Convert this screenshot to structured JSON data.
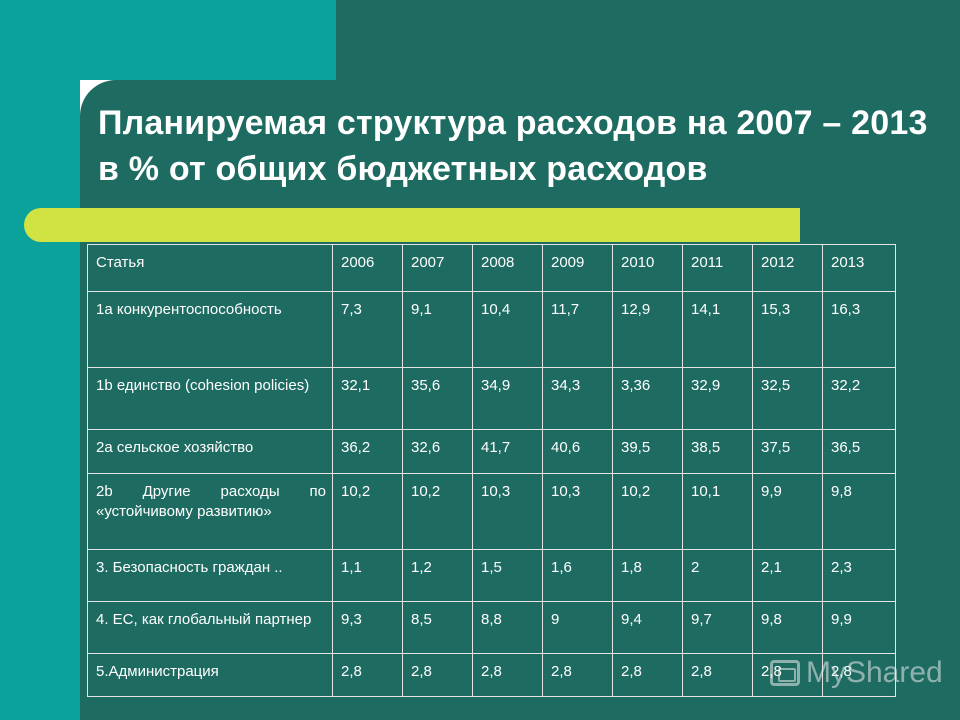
{
  "title": "Планируемая структура расходов на 2007 – 2013 в % от общих бюджетных расходов",
  "table": {
    "header": [
      "Статья",
      "2006",
      "2007",
      "2008",
      "2009",
      "2010",
      "2011",
      "2012",
      "2013"
    ],
    "rows": [
      {
        "label": "1а конкурентоспособность",
        "values": [
          "7,3",
          "9,1",
          "10,4",
          "11,7",
          "12,9",
          "14,1",
          "15,3",
          "16,3"
        ]
      },
      {
        "label": "1b единство (cohesion policies)",
        "values": [
          "32,1",
          "35,6",
          "34,9",
          "34,3",
          "3,36",
          "32,9",
          "32,5",
          "32,2"
        ]
      },
      {
        "label": "2а сельское хозяйство",
        "values": [
          "36,2",
          "32,6",
          "41,7",
          "40,6",
          "39,5",
          "38,5",
          "37,5",
          "36,5"
        ]
      },
      {
        "label": "2b Другие расходы по «устойчивому развитию»",
        "values": [
          "10,2",
          "10,2",
          "10,3",
          "10,3",
          "10,2",
          "10,1",
          "9,9",
          "9,8"
        ]
      },
      {
        "label": "3. Безопасность граждан ..",
        "values": [
          "1,1",
          "1,2",
          "1,5",
          "1,6",
          "1,8",
          "2",
          "2,1",
          "2,3"
        ]
      },
      {
        "label": "4. ЕС, как глобальный партнер",
        "values": [
          "9,3",
          "8,5",
          "8,8",
          "9",
          "9,4",
          "9,7",
          "9,8",
          "9,9"
        ]
      },
      {
        "label": "5.Администрация",
        "values": [
          "2,8",
          "2,8",
          "2,8",
          "2,8",
          "2,8",
          "2,8",
          "2,8",
          "2,8"
        ]
      }
    ]
  },
  "watermark": {
    "text": "MyShared",
    "icon": "presentation-icon"
  },
  "colors": {
    "panel": "#1e6b62",
    "accent": "#0aa29a",
    "bar": "#d1e343",
    "text": "#ffffff"
  }
}
